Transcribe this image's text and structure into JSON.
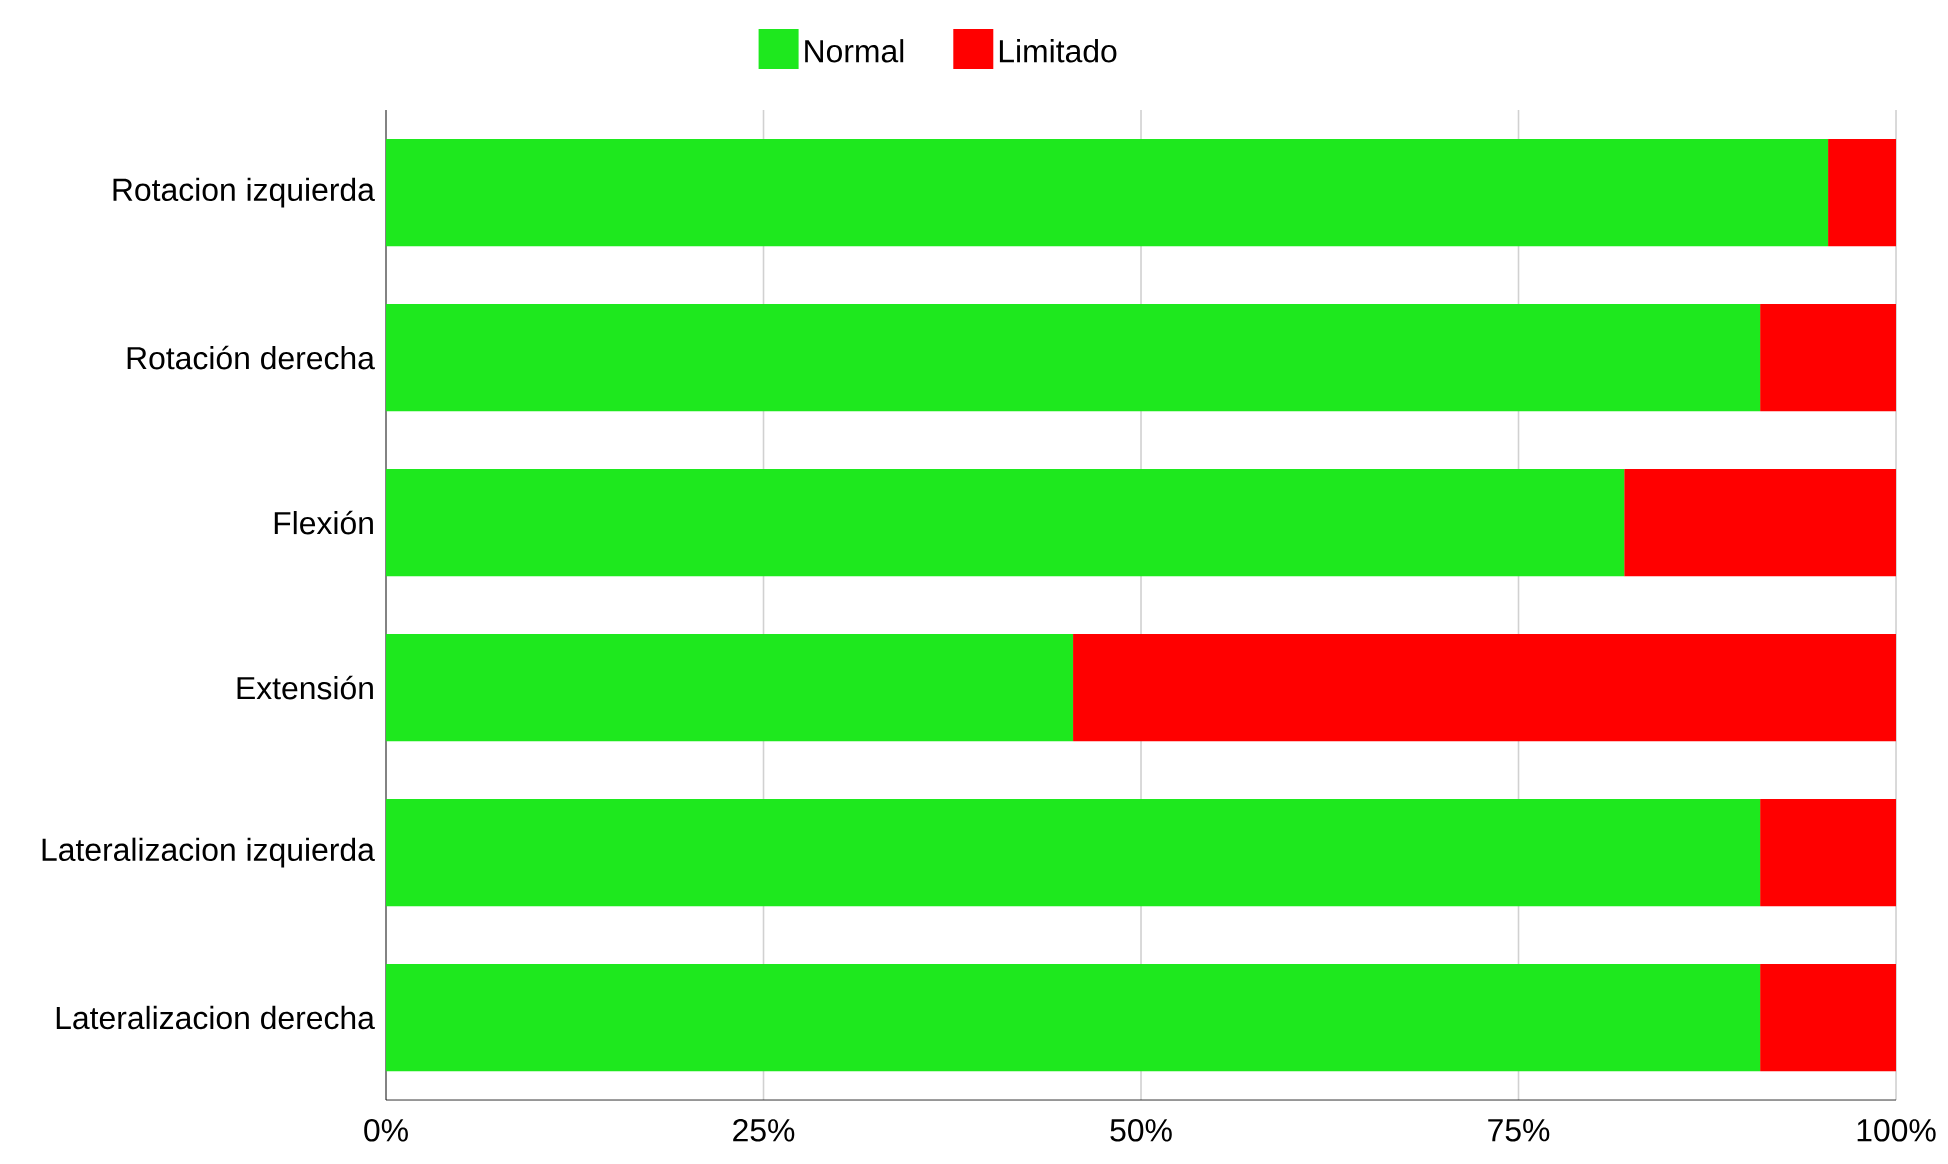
{
  "chart_data": {
    "type": "bar",
    "orientation": "horizontal",
    "stacked": true,
    "categories": [
      "Rotacion izquierda",
      "Rotación derecha",
      "Flexión",
      "Extensión",
      "Lateralizacion izquierda",
      "Lateralizacion derecha"
    ],
    "series": [
      {
        "name": "Normal",
        "color": "#1ee81e",
        "values": [
          95.5,
          91,
          82,
          45.5,
          91,
          91
        ]
      },
      {
        "name": "Limitado",
        "color": "#ff0000",
        "values": [
          4.5,
          9,
          18,
          54.5,
          9,
          9
        ]
      }
    ],
    "xlim": [
      0,
      100
    ],
    "xticks": [
      {
        "value": 0,
        "label": "0%"
      },
      {
        "value": 25,
        "label": "25%"
      },
      {
        "value": 50,
        "label": "50%"
      },
      {
        "value": 75,
        "label": "75%"
      },
      {
        "value": 100,
        "label": "100%"
      }
    ],
    "grid": "x",
    "legend": "top"
  }
}
